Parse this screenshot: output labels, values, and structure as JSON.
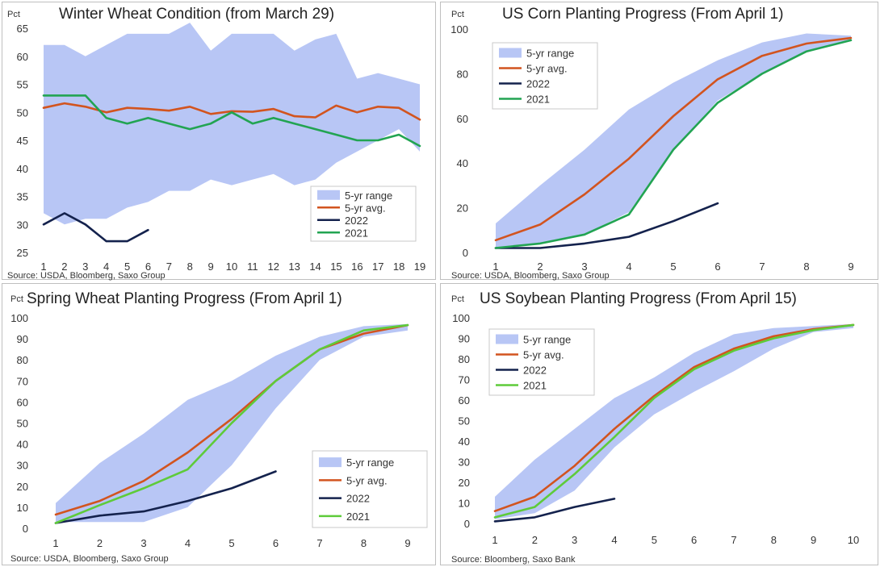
{
  "colors": {
    "range": "#b8c6f5",
    "avg": "#d2541f",
    "y2022": "#14224d",
    "y2021": "#22a452",
    "y2021_light": "#5ecb3a"
  },
  "chart_data": [
    {
      "type": "line",
      "title": "Winter Wheat Condition (from March 29)",
      "unit": "Pct",
      "source": "Source: USDA, Bloomberg, Saxo Group",
      "x": [
        1,
        2,
        3,
        4,
        5,
        6,
        7,
        8,
        9,
        10,
        11,
        12,
        13,
        14,
        15,
        16,
        17,
        18,
        19
      ],
      "ylim": [
        25,
        65
      ],
      "yticks": [
        25,
        30,
        35,
        40,
        45,
        50,
        55,
        60,
        65
      ],
      "range_name": "5-yr range",
      "range_lower": [
        32,
        30,
        31,
        31,
        33,
        34,
        36,
        36,
        38,
        37,
        38,
        39,
        37,
        38,
        41,
        43,
        45,
        47,
        43
      ],
      "range_upper": [
        62,
        62,
        60,
        62,
        64,
        64,
        64,
        66,
        61,
        64,
        64,
        64,
        61,
        63,
        64,
        56,
        57,
        56,
        55
      ],
      "series": [
        {
          "name": "5-yr avg.",
          "color_key": "avg",
          "values": [
            50.8,
            51.6,
            51,
            50,
            50.8,
            50.6,
            50.3,
            51,
            49.7,
            50.2,
            50.1,
            50.6,
            49.3,
            49.1,
            51.2,
            50,
            51,
            50.8,
            48.7
          ]
        },
        {
          "name": "2022",
          "color_key": "y2022",
          "values": [
            30,
            32,
            30,
            27,
            27,
            29,
            null,
            null,
            null,
            null,
            null,
            null,
            null,
            null,
            null,
            null,
            null,
            null,
            null
          ]
        },
        {
          "name": "2021",
          "color_key": "y2021",
          "values": [
            53,
            53,
            53,
            49,
            48,
            49,
            48,
            47,
            48,
            50,
            48,
            49,
            48,
            47,
            46,
            45,
            45,
            46,
            44
          ]
        }
      ],
      "legend": "bottom-right"
    },
    {
      "type": "line",
      "title": "US Corn Planting Progress (From April 1)",
      "unit": "Pct",
      "source": "Source: USDA, Bloomberg, Saxo Group",
      "x": [
        1,
        2,
        3,
        4,
        5,
        6,
        7,
        8,
        9
      ],
      "ylim": [
        0,
        100
      ],
      "yticks": [
        0,
        20,
        40,
        60,
        80,
        100
      ],
      "range_name": "5-yr range",
      "range_lower": [
        2,
        4,
        8,
        18,
        46,
        68,
        80,
        90,
        95
      ],
      "range_upper": [
        13,
        30,
        46,
        64,
        76,
        86,
        94,
        98,
        97
      ],
      "series": [
        {
          "name": "5-yr avg.",
          "color_key": "avg",
          "values": [
            5.5,
            12.5,
            26,
            42,
            61,
            77.5,
            88,
            93.5,
            96
          ]
        },
        {
          "name": "2022",
          "color_key": "y2022",
          "values": [
            2,
            2,
            4,
            7,
            14,
            22,
            null,
            null,
            null
          ]
        },
        {
          "name": "2021",
          "color_key": "y2021",
          "values": [
            2,
            4,
            8,
            17,
            46,
            67,
            80,
            90,
            95
          ]
        }
      ],
      "legend": "top-left"
    },
    {
      "type": "line",
      "title": "Spring Wheat Planting Progress (From April 1)",
      "unit": "Pct",
      "source": "Source: USDA, Bloomberg, Saxo Group",
      "x": [
        1,
        2,
        3,
        4,
        5,
        6,
        7,
        8,
        9
      ],
      "ylim": [
        0,
        100
      ],
      "yticks": [
        0,
        10,
        20,
        30,
        40,
        50,
        60,
        70,
        80,
        90,
        100
      ],
      "range_name": "5-yr range",
      "range_lower": [
        3,
        3,
        3,
        10,
        30,
        57,
        80,
        91,
        94
      ],
      "range_upper": [
        12,
        31,
        45,
        61,
        70,
        82,
        91,
        96,
        97
      ],
      "series": [
        {
          "name": "5-yr avg.",
          "color_key": "avg",
          "values": [
            6.5,
            13,
            22.5,
            36,
            52,
            70,
            85,
            92.5,
            96.5
          ]
        },
        {
          "name": "2022",
          "color_key": "y2022",
          "values": [
            2.5,
            6,
            8,
            13,
            19,
            27,
            null,
            null,
            null
          ]
        },
        {
          "name": "2021",
          "color_key": "y2021_light",
          "values": [
            2.5,
            11,
            19,
            28,
            50,
            70,
            85,
            94,
            96.5
          ]
        }
      ],
      "legend": "bottom-right"
    },
    {
      "type": "line",
      "title": "US Soybean Planting Progress (From April 15)",
      "unit": "Pct",
      "source": "Source: Bloomberg, Saxo Bank",
      "x": [
        1,
        2,
        3,
        4,
        5,
        6,
        7,
        8,
        9,
        10
      ],
      "ylim": [
        0,
        100
      ],
      "yticks": [
        0,
        10,
        20,
        30,
        40,
        50,
        60,
        70,
        80,
        90,
        100
      ],
      "range_name": "5-yr range",
      "range_lower": [
        2,
        5,
        16,
        37,
        53,
        64,
        74,
        85,
        93,
        95
      ],
      "range_upper": [
        13,
        31,
        46,
        61,
        71,
        83,
        92,
        95,
        96,
        97
      ],
      "series": [
        {
          "name": "5-yr avg.",
          "color_key": "avg",
          "values": [
            6,
            13,
            28,
            46,
            62,
            76,
            85,
            91,
            94.5,
            96.5
          ]
        },
        {
          "name": "2022",
          "color_key": "y2022",
          "values": [
            1,
            3,
            8,
            12,
            null,
            null,
            null,
            null,
            null,
            null
          ]
        },
        {
          "name": "2021",
          "color_key": "y2021_light",
          "values": [
            3,
            8,
            24,
            42,
            61,
            75,
            84,
            90,
            94,
            96.5
          ]
        }
      ],
      "legend": "top-left"
    }
  ]
}
